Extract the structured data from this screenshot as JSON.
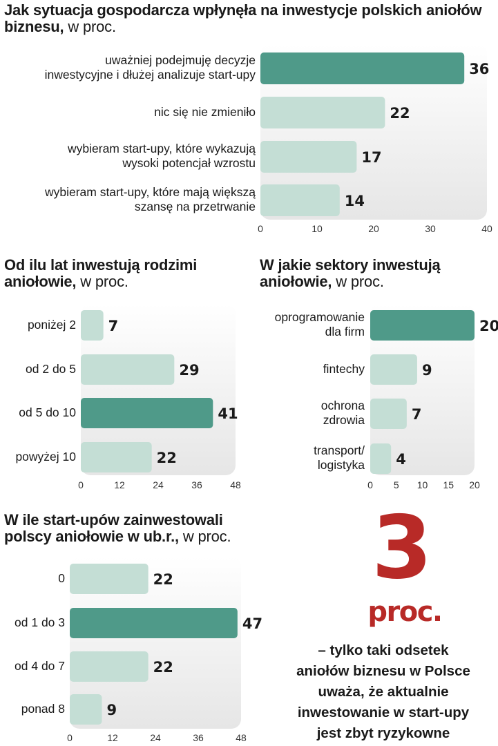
{
  "colors": {
    "highlight": "#4f9a89",
    "bar": "#c4ded5",
    "accent": "#b82a27"
  },
  "chart_data": [
    {
      "type": "bar",
      "orientation": "horizontal",
      "title": "Jak sytuacja gospodarcza wpłynęła na inwestycje polskich aniołów biznesu,",
      "unit": "w proc.",
      "categories": [
        "uważniej podejmuję decyzje\ninwestycyjne i dłużej analizuje start-upy",
        "nic się nie zmieniło",
        "wybieram start-upy, które wykazują\nwysoki potencjał wzrostu",
        "wybieram start-upy, które mają większą\nszansę na przetrwanie"
      ],
      "values": [
        36,
        22,
        17,
        14
      ],
      "highlight_index": 0,
      "xlim": [
        0,
        40
      ],
      "xticks": [
        0,
        10,
        20,
        30,
        40
      ]
    },
    {
      "type": "bar",
      "orientation": "horizontal",
      "title": "Od ilu lat inwestują rodzimi aniołowie,",
      "unit": "w proc.",
      "categories": [
        "poniżej 2",
        "od 2 do 5",
        "od 5 do 10",
        "powyżej 10"
      ],
      "values": [
        7,
        29,
        41,
        22
      ],
      "highlight_index": 2,
      "xlim": [
        0,
        48
      ],
      "xticks": [
        0,
        12,
        24,
        36,
        48
      ]
    },
    {
      "type": "bar",
      "orientation": "horizontal",
      "title": "W jakie sektory inwestują aniołowie,",
      "unit": "w proc.",
      "categories": [
        "oprogramowanie\ndla firm",
        "fintechy",
        "ochrona\nzdrowia",
        "transport/\nlogistyka"
      ],
      "values": [
        20,
        9,
        7,
        4
      ],
      "highlight_index": 0,
      "xlim": [
        0,
        20
      ],
      "xticks": [
        0,
        5,
        10,
        15,
        20
      ]
    },
    {
      "type": "bar",
      "orientation": "horizontal",
      "title": "W ile start-upów zainwestowali polscy aniołowie w ub.r.,",
      "unit": "w proc.",
      "categories": [
        "0",
        "od 1 do 3",
        "od 4 do 7",
        "ponad 8"
      ],
      "values": [
        22,
        47,
        22,
        9
      ],
      "highlight_index": 1,
      "xlim": [
        0,
        48
      ],
      "xticks": [
        0,
        12,
        24,
        36,
        48
      ]
    }
  ],
  "callout": {
    "number": "3",
    "unit": "proc.",
    "text": "– tylko taki odsetek\naniołów biznesu w Polsce\nuważa, że aktualnie\ninwestowanie w start-upy\njest zbyt ryzykowne"
  }
}
